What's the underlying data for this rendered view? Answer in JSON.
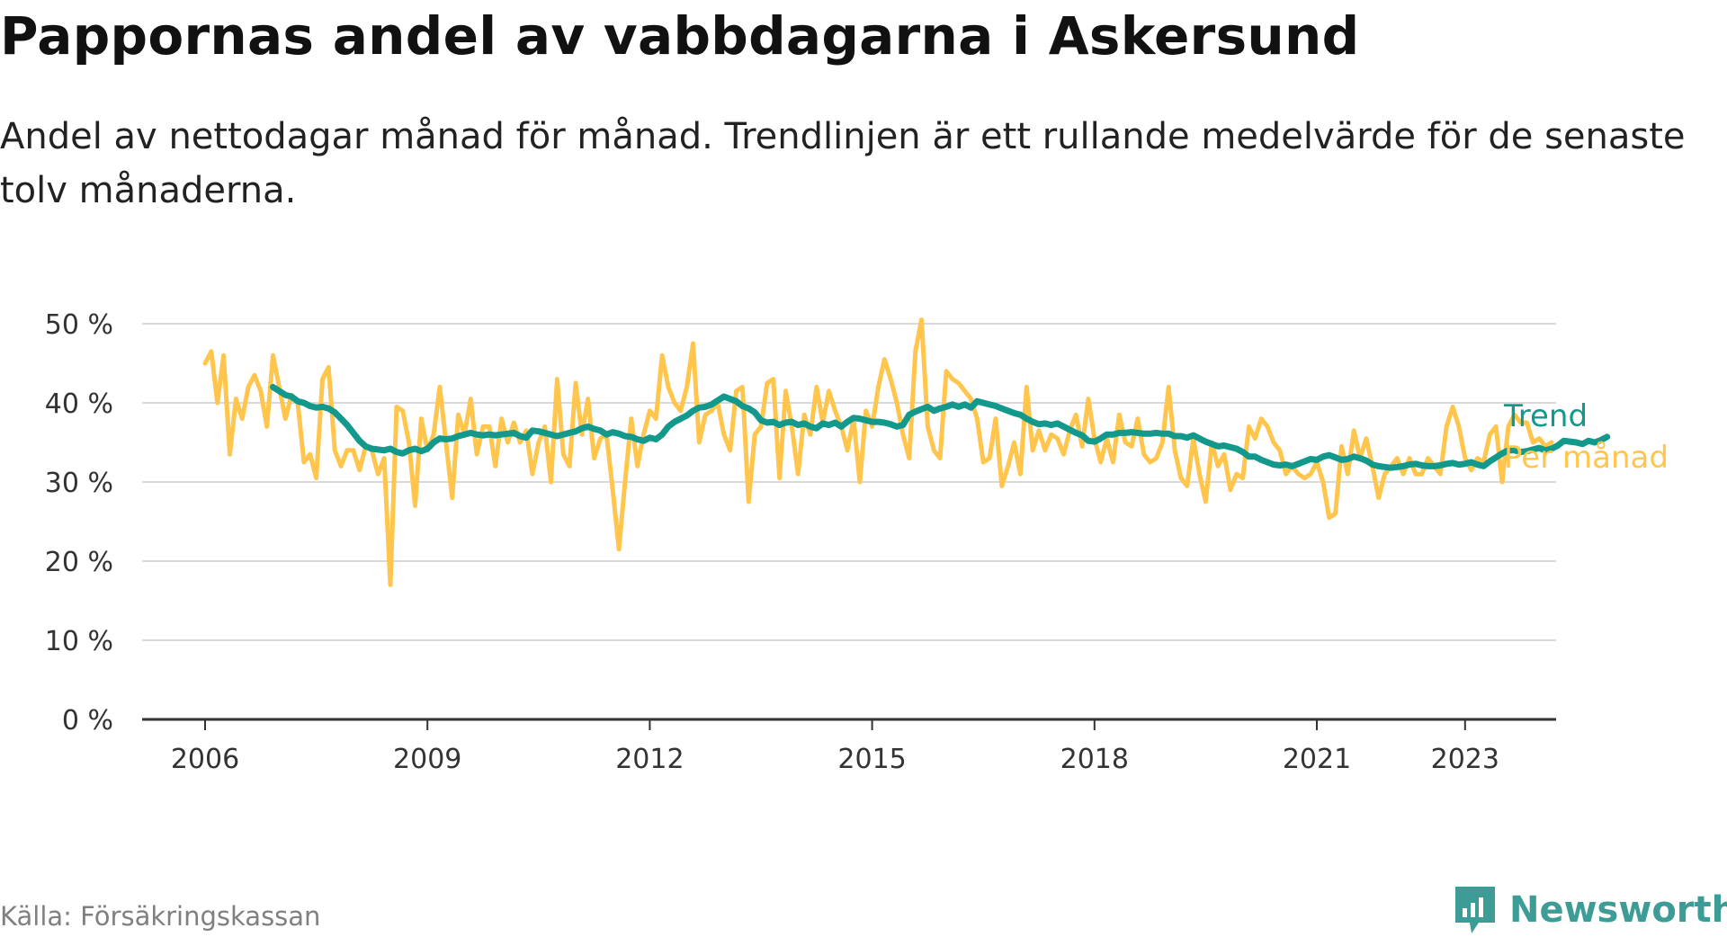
{
  "title": "Pappornas andel av vabbdagarna i Askersund",
  "subtitle": "Andel av nettodagar månad för månad. Trendlinjen är ett rullande medelvärde för de senaste tolv månaderna.",
  "source": "Källa: Försäkringskassan",
  "brand": {
    "name": "Newsworthy",
    "icon": "newsworthy-logo-icon"
  },
  "colors": {
    "trend": "#12998c",
    "monthly": "#ffc54d",
    "grid": "#d9d9d9",
    "axis": "#333333"
  },
  "chart_data": {
    "type": "line",
    "title": "Pappornas andel av vabbdagarna i Askersund",
    "subtitle": "Andel av nettodagar månad för månad. Trendlinjen är ett rullande medelvärde för de senaste tolv månaderna.",
    "xlabel": "",
    "ylabel": "",
    "xlim": [
      "2006-01",
      "2023-06"
    ],
    "ylim": [
      0,
      50
    ],
    "x_ticks": [
      {
        "value": 2006,
        "label": "2006"
      },
      {
        "value": 2009,
        "label": "2009"
      },
      {
        "value": 2012,
        "label": "2012"
      },
      {
        "value": 2015,
        "label": "2015"
      },
      {
        "value": 2018,
        "label": "2018"
      },
      {
        "value": 2021,
        "label": "2021"
      },
      {
        "value": 2023,
        "label": "2023"
      }
    ],
    "y_ticks": [
      {
        "value": 0,
        "label": "0 %"
      },
      {
        "value": 10,
        "label": "10 %"
      },
      {
        "value": 20,
        "label": "20 %"
      },
      {
        "value": 30,
        "label": "30 %"
      },
      {
        "value": 40,
        "label": "40 %"
      },
      {
        "value": 50,
        "label": "50 %"
      }
    ],
    "grid": true,
    "legend": "right (inline labels at line ends)",
    "series": [
      {
        "name": "Per månad",
        "color": "#ffc54d",
        "start": "2006-01",
        "frequency": "monthly",
        "values": [
          45,
          46.5,
          40,
          46,
          33.5,
          40.5,
          38,
          42,
          43.5,
          41.5,
          37,
          46,
          42,
          38,
          41,
          40,
          32.5,
          33.5,
          30.5,
          43,
          44.5,
          34,
          32,
          34,
          34,
          31.5,
          34.5,
          34,
          31,
          33,
          17,
          39.5,
          39,
          35,
          27,
          38,
          34,
          36,
          42,
          35,
          28,
          38.5,
          36,
          40.5,
          33.5,
          37,
          37,
          32,
          38,
          35,
          37.5,
          35,
          36.5,
          31,
          35,
          37,
          30,
          43,
          33.5,
          32,
          42.5,
          36,
          40.5,
          33,
          35.5,
          36,
          29,
          21.5,
          30,
          38,
          32,
          36,
          39,
          38,
          46,
          42,
          40,
          39,
          42,
          47.5,
          35,
          38.5,
          39,
          40,
          36,
          34,
          41.5,
          42,
          27.5,
          36,
          37,
          42.5,
          43,
          30.5,
          41.5,
          37,
          31,
          38.5,
          36,
          42,
          37.5,
          41.5,
          39,
          37,
          34,
          38,
          30,
          39,
          37,
          42,
          45.5,
          43,
          40,
          36,
          33,
          46.5,
          50.5,
          37,
          34,
          33,
          44,
          43,
          42.5,
          41.5,
          40.5,
          38,
          32.5,
          33,
          38,
          29.5,
          32,
          35,
          31,
          42,
          34,
          36.5,
          34,
          36,
          35.5,
          33.5,
          36.5,
          38.5,
          34.5,
          40.5,
          35.5,
          32.5,
          35.5,
          32.5,
          38.5,
          35,
          34.5,
          38,
          33.5,
          32.5,
          33,
          35,
          42,
          34,
          30.5,
          29.5,
          35.5,
          31,
          27.5,
          35,
          32,
          33.5,
          29,
          31,
          30.5,
          37,
          35.5,
          38,
          37,
          35,
          34,
          31,
          32,
          31,
          30.5,
          31,
          32.5,
          30,
          25.5,
          26,
          34.5,
          31,
          36.5,
          33,
          35.5,
          32,
          28,
          31,
          32,
          33,
          31,
          33,
          31,
          31,
          33,
          32,
          31,
          37,
          39.5,
          37,
          33,
          31.5,
          33,
          32.5,
          36,
          37,
          30,
          37,
          38.5,
          37.5,
          37.5,
          35,
          35.5,
          34.5,
          35
        ]
      },
      {
        "name": "Trend",
        "color": "#12998c",
        "start": "2006-12",
        "frequency": "monthly",
        "values": [
          42,
          41.5,
          41,
          40.8,
          40.2,
          40,
          39.6,
          39.4,
          39.5,
          39.3,
          38.8,
          38,
          37.2,
          36.2,
          35.2,
          34.5,
          34.2,
          34.1,
          34,
          34.2,
          33.8,
          33.6,
          34,
          34.2,
          33.9,
          34.2,
          35,
          35.5,
          35.4,
          35.5,
          35.8,
          36,
          36.2,
          36,
          35.9,
          36,
          35.9,
          36,
          36.1,
          36.2,
          35.8,
          35.6,
          36.5,
          36.4,
          36.2,
          36,
          35.8,
          36,
          36.2,
          36.4,
          36.8,
          37,
          36.7,
          36.5,
          36,
          36.3,
          36.1,
          35.8,
          35.7,
          35.4,
          35.2,
          35.6,
          35.4,
          36,
          37,
          37.6,
          38,
          38.4,
          39,
          39.4,
          39.5,
          39.8,
          40.3,
          40.8,
          40.5,
          40.2,
          39.6,
          39.3,
          38.8,
          37.8,
          37.5,
          37.6,
          37.2,
          37.5,
          37.6,
          37.2,
          37.4,
          37,
          36.8,
          37.4,
          37.2,
          37.5,
          37,
          37.6,
          38.1,
          38,
          37.8,
          37.6,
          37.6,
          37.5,
          37.3,
          37,
          37.2,
          38.5,
          38.9,
          39.2,
          39.5,
          39,
          39.3,
          39.5,
          39.8,
          39.5,
          39.8,
          39.4,
          40.2,
          40,
          39.8,
          39.6,
          39.3,
          39,
          38.7,
          38.5,
          38,
          37.6,
          37.3,
          37.4,
          37.2,
          37.4,
          37,
          36.6,
          36.2,
          35.9,
          35.2,
          35.1,
          35.5,
          36,
          36,
          36.2,
          36.2,
          36.3,
          36.2,
          36.1,
          36.1,
          36.2,
          36.1,
          36.1,
          35.8,
          35.8,
          35.6,
          35.9,
          35.5,
          35.1,
          34.8,
          34.5,
          34.6,
          34.4,
          34.2,
          33.8,
          33.2,
          33.2,
          32.8,
          32.5,
          32.2,
          32.1,
          32.2,
          32,
          32.3,
          32.6,
          32.9,
          32.8,
          33.2,
          33.4,
          33.1,
          32.8,
          32.9,
          33.2,
          33,
          32.7,
          32.2,
          32,
          31.9,
          31.8,
          31.9,
          32,
          32.2,
          32.3,
          32.1,
          32,
          32,
          32.1,
          32.3,
          32.4,
          32.2,
          32.3,
          32.5,
          32.2,
          32,
          32.6,
          33.1,
          33.6,
          34,
          34,
          33.8,
          33.9,
          34.1,
          34.3,
          34,
          34.2,
          34.6,
          35.2,
          35.1,
          35,
          34.8,
          35.2,
          35,
          35.3,
          35.7
        ]
      }
    ]
  }
}
